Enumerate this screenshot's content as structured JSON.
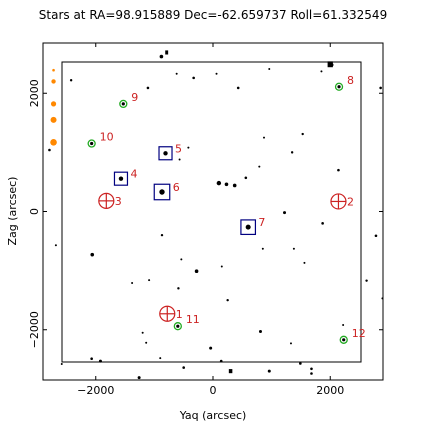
{
  "chart_data": {
    "type": "scatter",
    "title": "Stars at RA=98.915889 Dec=-62.659737 Roll=61.332549",
    "xlabel": "Yaq (arcsec)",
    "ylabel": "Zag (arcsec)",
    "xlim": [
      -2900,
      2900
    ],
    "ylim": [
      -2850,
      2850
    ],
    "xticks": [
      -2000,
      0,
      2000
    ],
    "xtick_labels": [
      "−2000",
      "0",
      "2000"
    ],
    "yticks": [
      -2000,
      0,
      2000
    ],
    "ytick_labels": [
      "−2000",
      "0",
      "2000"
    ],
    "grid": false,
    "colors": {
      "frame": "#000000",
      "guide_star": "#000080",
      "fid_light": "#cc2222",
      "acq_star": "#22aa22",
      "label": "#cc2222",
      "edge_star": "#ff8800"
    },
    "guide_stars": [
      {
        "id": "4",
        "x": -1570,
        "y": 555,
        "size": 1
      },
      {
        "id": "5",
        "x": -810,
        "y": 985,
        "size": 1
      },
      {
        "id": "6",
        "x": -870,
        "y": 330,
        "size": 1.5
      },
      {
        "id": "7",
        "x": 600,
        "y": -265,
        "size": 1.3
      }
    ],
    "fid_lights": [
      {
        "id": "1",
        "x": -780,
        "y": -1730
      },
      {
        "id": "2",
        "x": 2140,
        "y": 170
      },
      {
        "id": "3",
        "x": -1820,
        "y": 180
      }
    ],
    "acq_stars": [
      {
        "id": "8",
        "x": 2150,
        "y": 2110
      },
      {
        "id": "9",
        "x": -1530,
        "y": 1820
      },
      {
        "id": "10",
        "x": -2070,
        "y": 1150
      },
      {
        "id": "11",
        "x": -600,
        "y": -1940
      },
      {
        "id": "12",
        "x": 2230,
        "y": -2170
      }
    ],
    "field_stars": [
      {
        "x": -2420,
        "y": 2220,
        "r": 1.2
      },
      {
        "x": -2790,
        "y": 1040,
        "r": 1.3
      },
      {
        "x": -2680,
        "y": -570,
        "r": 1.0
      },
      {
        "x": -2060,
        "y": -730,
        "r": 1.8
      },
      {
        "x": -2070,
        "y": -2490,
        "r": 1.3
      },
      {
        "x": -1920,
        "y": -2530,
        "r": 1.5
      },
      {
        "x": -2580,
        "y": -2580,
        "r": 1.0
      },
      {
        "x": -1260,
        "y": -2810,
        "r": 1.5
      },
      {
        "x": -1140,
        "y": -2220,
        "r": 1.0
      },
      {
        "x": -1110,
        "y": 2090,
        "r": 1.3
      },
      {
        "x": -1090,
        "y": -1160,
        "r": 1.0
      },
      {
        "x": -1380,
        "y": -1210,
        "r": 1.0
      },
      {
        "x": -880,
        "y": 2620,
        "r": 1.8
      },
      {
        "x": -870,
        "y": -400,
        "r": 1.2
      },
      {
        "x": -900,
        "y": -2480,
        "r": 1.0
      },
      {
        "x": -590,
        "y": -1300,
        "r": 1.2
      },
      {
        "x": -500,
        "y": -2640,
        "r": 1.3
      },
      {
        "x": -620,
        "y": 2330,
        "r": 1.0
      },
      {
        "x": -330,
        "y": 2260,
        "r": 1.3
      },
      {
        "x": -570,
        "y": 880,
        "r": 1.0
      },
      {
        "x": -420,
        "y": 1080,
        "r": 1.0
      },
      {
        "x": -540,
        "y": -810,
        "r": 1.0
      },
      {
        "x": -280,
        "y": -1010,
        "r": 1.8
      },
      {
        "x": -40,
        "y": -2310,
        "r": 1.5
      },
      {
        "x": 60,
        "y": 2330,
        "r": 1.0
      },
      {
        "x": 100,
        "y": 480,
        "r": 2.2
      },
      {
        "x": 230,
        "y": 460,
        "r": 1.8
      },
      {
        "x": 370,
        "y": 440,
        "r": 1.8
      },
      {
        "x": 430,
        "y": 2090,
        "r": 1.3
      },
      {
        "x": 150,
        "y": -930,
        "r": 1.0
      },
      {
        "x": 250,
        "y": -1500,
        "r": 1.2
      },
      {
        "x": 140,
        "y": -2530,
        "r": 1.3
      },
      {
        "x": 560,
        "y": 570,
        "r": 1.3
      },
      {
        "x": 790,
        "y": 760,
        "r": 1.0
      },
      {
        "x": 870,
        "y": 1250,
        "r": 1.0
      },
      {
        "x": 960,
        "y": 2410,
        "r": 1.0
      },
      {
        "x": 850,
        "y": -630,
        "r": 1.0
      },
      {
        "x": 810,
        "y": -2030,
        "r": 1.5
      },
      {
        "x": 960,
        "y": -2700,
        "r": 1.5
      },
      {
        "x": 1220,
        "y": -20,
        "r": 1.5
      },
      {
        "x": 1350,
        "y": 1000,
        "r": 1.2
      },
      {
        "x": 1530,
        "y": 1310,
        "r": 1.2
      },
      {
        "x": 1380,
        "y": -630,
        "r": 1.0
      },
      {
        "x": 1330,
        "y": -2230,
        "r": 1.0
      },
      {
        "x": 1490,
        "y": -2570,
        "r": 1.3
      },
      {
        "x": 1560,
        "y": -870,
        "r": 1.0
      },
      {
        "x": 1680,
        "y": -2660,
        "r": 1.3
      },
      {
        "x": 1680,
        "y": -2740,
        "r": 1.3
      },
      {
        "x": 1850,
        "y": 2370,
        "r": 1.0
      },
      {
        "x": 2030,
        "y": 2480,
        "r": 1.5
      },
      {
        "x": 2140,
        "y": 700,
        "r": 1.3
      },
      {
        "x": 2220,
        "y": -1920,
        "r": 1.0
      },
      {
        "x": 2620,
        "y": -1170,
        "r": 1.2
      },
      {
        "x": 2780,
        "y": -410,
        "r": 1.3
      },
      {
        "x": 2860,
        "y": 2090,
        "r": 1.3
      },
      {
        "x": 2890,
        "y": -1470,
        "r": 1.0
      },
      {
        "x": 1870,
        "y": -200,
        "r": 1.3
      },
      {
        "x": -1200,
        "y": -2050,
        "r": 1.0
      }
    ],
    "large_stars": [
      {
        "x": 2000,
        "y": 2490,
        "w": 90,
        "h": 100
      },
      {
        "x": -790,
        "y": 2690,
        "w": 50,
        "h": 70
      },
      {
        "x": 300,
        "y": -2700,
        "w": 60,
        "h": 70
      }
    ],
    "edge_stars": [
      {
        "x": -2720,
        "y": 2390,
        "r": 1.3
      },
      {
        "x": -2720,
        "y": 2200,
        "r": 2.2
      },
      {
        "x": -2720,
        "y": 1820,
        "r": 2.6
      },
      {
        "x": -2720,
        "y": 1550,
        "r": 3.0
      },
      {
        "x": -2720,
        "y": 1170,
        "r": 3.3
      }
    ]
  }
}
